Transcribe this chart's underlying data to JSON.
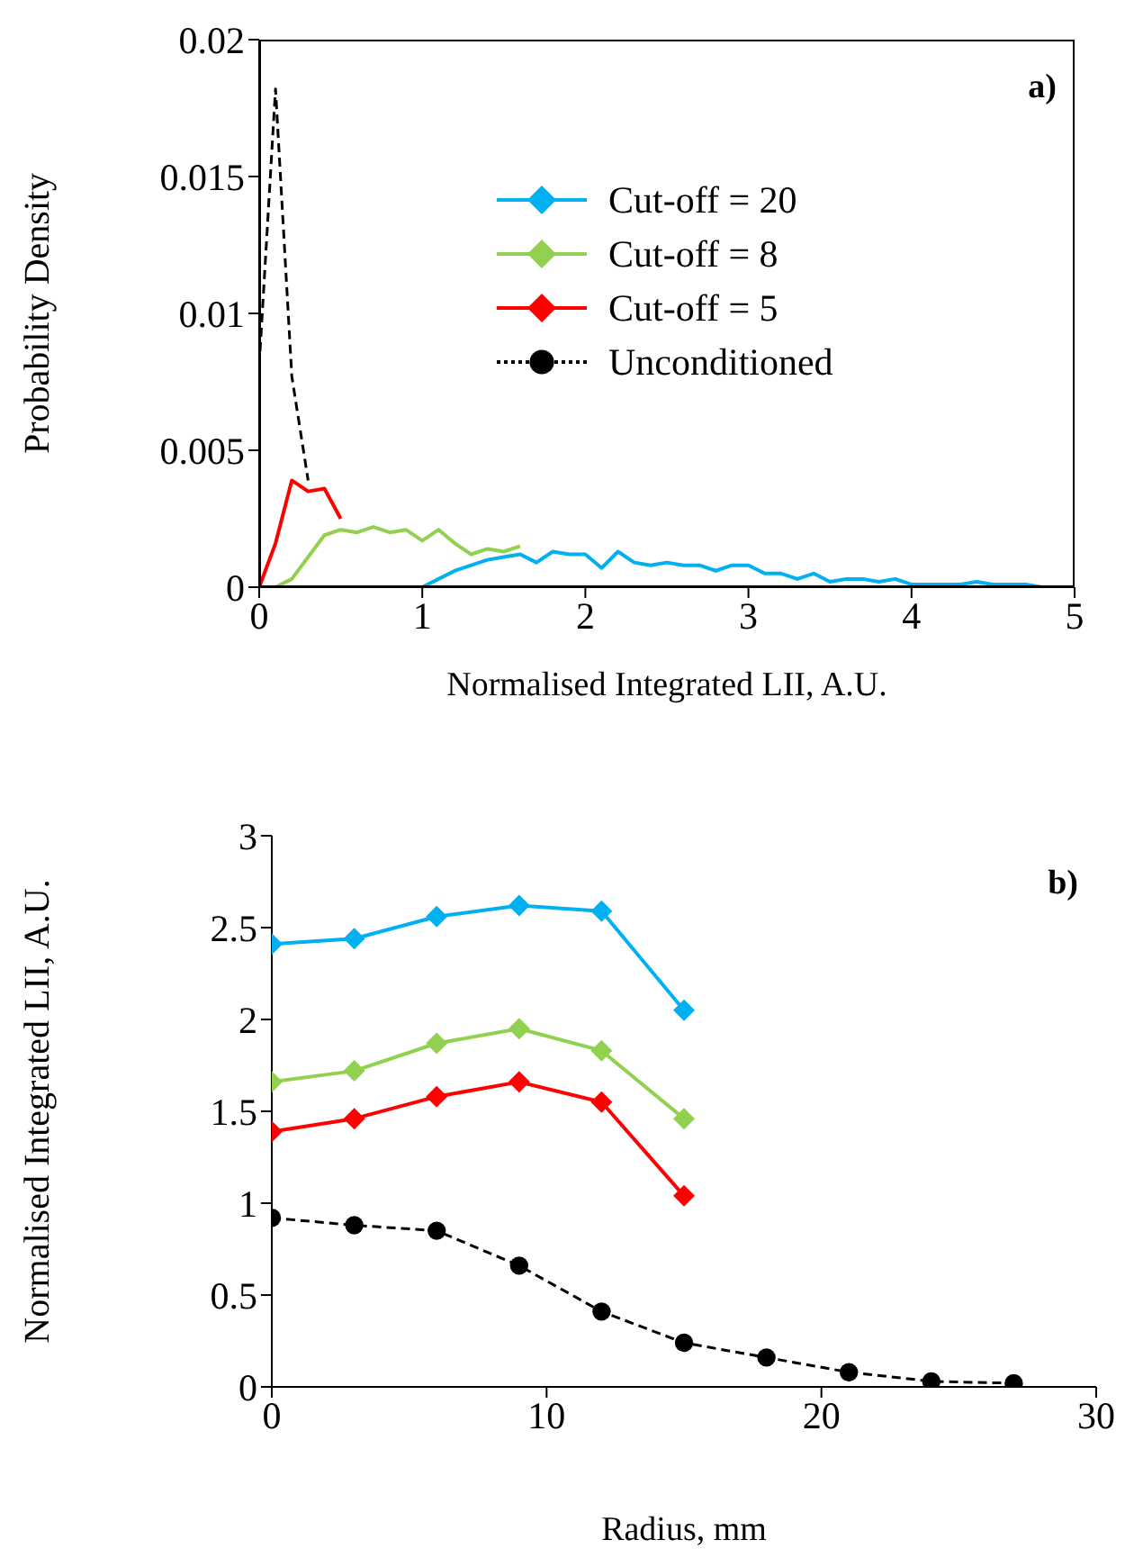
{
  "chart_data": [
    {
      "type": "line",
      "annotations": [
        "a)"
      ],
      "xlabel": "Normalised Integrated LII, A.U.",
      "ylabel": "Probability Density",
      "xlim": [
        0,
        5
      ],
      "xticks": [
        0,
        1,
        2,
        3,
        4,
        5
      ],
      "ylim": [
        0,
        0.02
      ],
      "yticks": [
        0,
        0.005,
        0.01,
        0.015,
        0.02
      ],
      "legend": "top",
      "marker": "none",
      "x": [
        0,
        0.1,
        0.2,
        0.3,
        0.4,
        0.5,
        0.6,
        0.7,
        0.8,
        0.9,
        1,
        1.1,
        1.2,
        1.3,
        1.4,
        1.5,
        1.6,
        1.7,
        1.8,
        1.9,
        2,
        2.1,
        2.2,
        2.3,
        2.4,
        2.5,
        2.6,
        2.7,
        2.8,
        2.9,
        3,
        3.1,
        3.2,
        3.3,
        3.4,
        3.5,
        3.6,
        3.7,
        3.8,
        3.9,
        4,
        4.1,
        4.2,
        4.3,
        4.4,
        4.5,
        4.6,
        4.7,
        4.8,
        4.9,
        5
      ],
      "series": [
        {
          "name": "Cut-off = 20",
          "color": "#00b0f0",
          "values": [
            null,
            null,
            null,
            null,
            null,
            null,
            null,
            null,
            null,
            null,
            0,
            0.0003,
            0.0006,
            0.0008,
            0.001,
            0.0011,
            0.0012,
            0.0009,
            0.0013,
            0.0012,
            0.0012,
            0.0007,
            0.0013,
            0.0009,
            0.0008,
            0.0009,
            0.0008,
            0.0008,
            0.0006,
            0.0008,
            0.0008,
            0.0005,
            0.0005,
            0.0003,
            0.0005,
            0.0002,
            0.0003,
            0.0003,
            0.0002,
            0.0003,
            0.0001,
            0.0001,
            0.0001,
            0.0001,
            0.0002,
            0.0001,
            0.0001,
            0.0001,
            0,
            0,
            0
          ]
        },
        {
          "name": "Cut-off = 8",
          "color": "#92d050",
          "values": [
            null,
            0,
            0.0003,
            0.0011,
            0.0019,
            0.0021,
            0.002,
            0.0022,
            0.002,
            0.0021,
            0.0017,
            0.0021,
            0.0016,
            0.0012,
            0.0014,
            0.0013,
            0.0015,
            null,
            null,
            null,
            null,
            null,
            null,
            null,
            null,
            null,
            null,
            null,
            null,
            null,
            null,
            null,
            null,
            null,
            null,
            null,
            null,
            null,
            null,
            null,
            null,
            null,
            null,
            null,
            null,
            null,
            null,
            null,
            null,
            null,
            null
          ]
        },
        {
          "name": "Cut-off = 5",
          "color": "#ff0000",
          "values": [
            0,
            0.0016,
            0.0039,
            0.0035,
            0.0036,
            0.0025,
            null,
            null,
            null,
            null,
            null,
            null,
            null,
            null,
            null,
            null,
            null,
            null,
            null,
            null,
            null,
            null,
            null,
            null,
            null,
            null,
            null,
            null,
            null,
            null,
            null,
            null,
            null,
            null,
            null,
            null,
            null,
            null,
            null,
            null,
            null,
            null,
            null,
            null,
            null,
            null,
            null,
            null,
            null,
            null,
            null
          ]
        },
        {
          "name": "Unconditioned",
          "color": "#000000",
          "line_style": "dashed",
          "values": [
            0.0081,
            0.0182,
            0.0077,
            0.0039,
            null,
            null,
            null,
            null,
            null,
            null,
            null,
            null,
            null,
            null,
            null,
            null,
            null,
            null,
            null,
            null,
            null,
            null,
            null,
            null,
            null,
            null,
            null,
            null,
            null,
            null,
            null,
            null,
            null,
            null,
            null,
            null,
            null,
            null,
            null,
            null,
            null,
            null,
            null,
            null,
            null,
            null,
            null,
            null,
            null,
            null,
            null
          ]
        }
      ]
    },
    {
      "type": "line",
      "annotations": [
        "b)"
      ],
      "xlabel": "Radius, mm",
      "ylabel": "Normalised Integrated LII, A.U.",
      "xlim": [
        0,
        30
      ],
      "xticks": [
        0,
        10,
        20,
        30
      ],
      "ylim": [
        0,
        3
      ],
      "yticks": [
        0,
        0.5,
        1,
        1.5,
        2,
        2.5,
        3
      ],
      "series": [
        {
          "color": "#00b0f0",
          "marker": "diamond",
          "x": [
            0,
            3,
            6,
            9,
            12,
            15
          ],
          "values": [
            2.41,
            2.44,
            2.56,
            2.62,
            2.59,
            2.05
          ]
        },
        {
          "color": "#92d050",
          "marker": "diamond",
          "x": [
            0,
            3,
            6,
            9,
            12,
            15
          ],
          "values": [
            1.66,
            1.72,
            1.87,
            1.95,
            1.83,
            1.46
          ]
        },
        {
          "color": "#ff0000",
          "marker": "diamond",
          "x": [
            0,
            3,
            6,
            9,
            12,
            15
          ],
          "values": [
            1.39,
            1.46,
            1.58,
            1.66,
            1.55,
            1.04
          ]
        },
        {
          "color": "#000000",
          "marker": "circle",
          "line_style": "dashed",
          "x": [
            0,
            3,
            6,
            9,
            12,
            15,
            18,
            21,
            24,
            27
          ],
          "values": [
            0.92,
            0.88,
            0.85,
            0.66,
            0.41,
            0.24,
            0.16,
            0.08,
            0.03,
            0.02
          ]
        }
      ]
    }
  ]
}
